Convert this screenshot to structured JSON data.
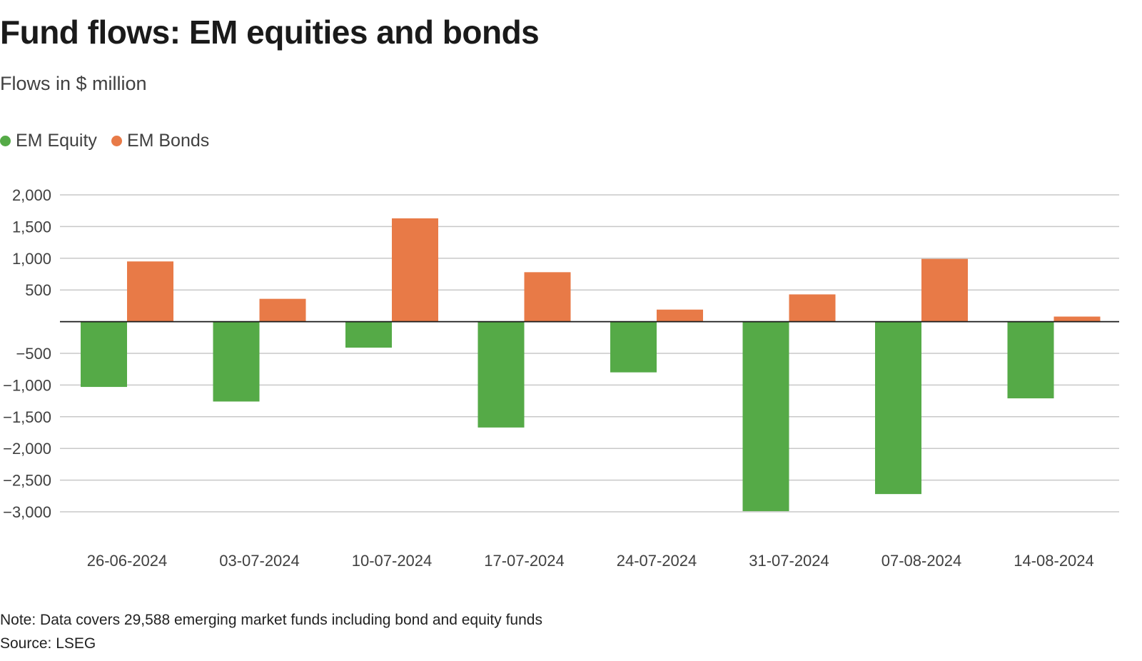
{
  "chart_data": {
    "type": "bar",
    "title": "Fund flows: EM equities and bonds",
    "subtitle": "Flows in $ million",
    "categories": [
      "26-06-2024",
      "03-07-2024",
      "10-07-2024",
      "17-07-2024",
      "24-07-2024",
      "31-07-2024",
      "07-08-2024",
      "14-08-2024"
    ],
    "series": [
      {
        "name": "EM Equity",
        "color": "#55aa47",
        "values": [
          -1030,
          -1260,
          -410,
          -1670,
          -800,
          -2990,
          -2720,
          -1210
        ]
      },
      {
        "name": "EM Bonds",
        "color": "#e87a47",
        "values": [
          950,
          360,
          1630,
          780,
          190,
          430,
          990,
          80
        ]
      }
    ],
    "ylim": [
      -3000,
      2000
    ],
    "yticks": [
      2000,
      1500,
      1000,
      500,
      -500,
      -1000,
      -1500,
      -2000,
      -2500,
      -3000
    ],
    "ytick_labels": [
      "2,000",
      "1,500",
      "1,000",
      "500",
      "−500",
      "−1,000",
      "−1,500",
      "−2,000",
      "−2,500",
      "−3,000"
    ],
    "xlabel": "",
    "ylabel": "",
    "grid": true,
    "legend_position": "top-left"
  },
  "footer": {
    "note": "Note: Data covers 29,588 emerging market funds including bond and equity funds",
    "source": "Source: LSEG"
  }
}
